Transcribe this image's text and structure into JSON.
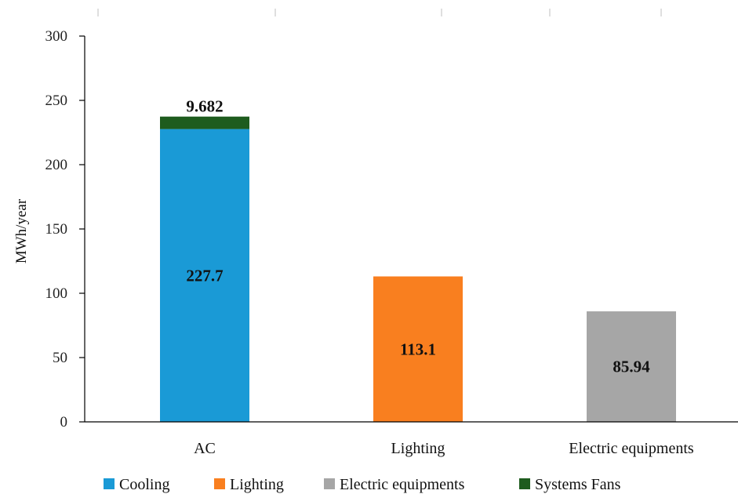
{
  "chart_data": {
    "type": "bar",
    "stacked": true,
    "title": "",
    "xlabel": "",
    "ylabel": "MWh/year",
    "ylim": [
      0,
      300
    ],
    "yticks": [
      0,
      50,
      100,
      150,
      200,
      250,
      300
    ],
    "grid": false,
    "legend_position": "bottom",
    "categories": [
      "AC",
      "Lighting",
      "Electric equipments"
    ],
    "series": [
      {
        "name": "Cooling",
        "color": "#1a9ad6",
        "values": [
          227.7,
          0,
          0
        ],
        "labels": [
          "227.7",
          "",
          ""
        ]
      },
      {
        "name": "Lighting",
        "color": "#f97f1f",
        "values": [
          0,
          113.1,
          0
        ],
        "labels": [
          "",
          "113.1",
          ""
        ]
      },
      {
        "name": "Electric equipments",
        "color": "#a6a6a6",
        "values": [
          0,
          0,
          85.94
        ],
        "labels": [
          "",
          "",
          "85.94"
        ]
      },
      {
        "name": "Systems Fans",
        "color": "#1e5c1e",
        "values": [
          9.682,
          0,
          0
        ],
        "labels": [
          "9.682",
          "",
          ""
        ]
      }
    ]
  }
}
